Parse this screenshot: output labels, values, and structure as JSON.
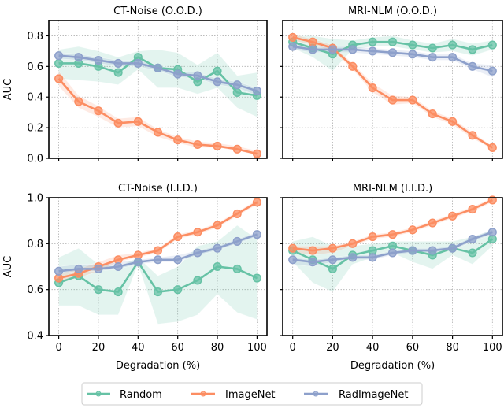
{
  "legend": {
    "placement": "bottom-center",
    "entries": [
      {
        "name": "Random",
        "color": "#66c2a5"
      },
      {
        "name": "ImageNet",
        "color": "#fc8d62"
      },
      {
        "name": "RadImageNet",
        "color": "#8da0cb"
      }
    ]
  },
  "chart_data": [
    {
      "type": "line",
      "title": "CT-Noise (O.O.D.)",
      "xlabel": "",
      "ylabel": "AUC",
      "x": [
        0,
        10,
        20,
        30,
        40,
        50,
        60,
        70,
        80,
        90,
        100
      ],
      "xlim": [
        -5,
        105
      ],
      "ylim": [
        0.0,
        0.9
      ],
      "xticks": [
        0,
        20,
        40,
        60,
        80,
        100
      ],
      "xtick_labels_shown": false,
      "yticks": [
        0.0,
        0.2,
        0.4,
        0.6,
        0.8
      ],
      "ytick_labels": [
        "0.0",
        "0.2",
        "0.4",
        "0.6",
        "0.8"
      ],
      "grid": true,
      "series": [
        {
          "name": "Random",
          "values": [
            0.62,
            0.62,
            0.6,
            0.56,
            0.66,
            0.59,
            0.58,
            0.5,
            0.57,
            0.43,
            0.41
          ],
          "lower": [
            0.52,
            0.51,
            0.5,
            0.48,
            0.58,
            0.46,
            0.46,
            0.42,
            0.46,
            0.33,
            0.27
          ],
          "upper": [
            0.71,
            0.73,
            0.7,
            0.66,
            0.7,
            0.71,
            0.69,
            0.61,
            0.69,
            0.54,
            0.56
          ]
        },
        {
          "name": "ImageNet",
          "values": [
            0.52,
            0.37,
            0.31,
            0.23,
            0.24,
            0.17,
            0.12,
            0.09,
            0.08,
            0.06,
            0.03
          ],
          "lower": [
            0.47,
            0.33,
            0.27,
            0.2,
            0.21,
            0.14,
            0.1,
            0.07,
            0.07,
            0.05,
            0.02
          ],
          "upper": [
            0.57,
            0.41,
            0.34,
            0.26,
            0.27,
            0.19,
            0.14,
            0.11,
            0.1,
            0.08,
            0.05
          ]
        },
        {
          "name": "RadImageNet",
          "values": [
            0.67,
            0.66,
            0.64,
            0.62,
            0.62,
            0.59,
            0.55,
            0.54,
            0.5,
            0.48,
            0.44
          ],
          "lower": [
            0.65,
            0.64,
            0.62,
            0.6,
            0.6,
            0.57,
            0.53,
            0.52,
            0.48,
            0.46,
            0.41
          ],
          "upper": [
            0.69,
            0.68,
            0.66,
            0.64,
            0.64,
            0.61,
            0.57,
            0.56,
            0.52,
            0.5,
            0.46
          ]
        }
      ]
    },
    {
      "type": "line",
      "title": "MRI-NLM (O.O.D.)",
      "xlabel": "",
      "ylabel": "",
      "x": [
        0,
        10,
        20,
        30,
        40,
        50,
        60,
        70,
        80,
        90,
        100
      ],
      "xlim": [
        -5,
        105
      ],
      "ylim": [
        0.0,
        0.9
      ],
      "xticks": [
        0,
        20,
        40,
        60,
        80,
        100
      ],
      "xtick_labels_shown": false,
      "yticks": [
        0.0,
        0.2,
        0.4,
        0.6,
        0.8
      ],
      "ytick_labels_shown": false,
      "grid": true,
      "series": [
        {
          "name": "Random",
          "values": [
            0.76,
            0.72,
            0.68,
            0.74,
            0.76,
            0.76,
            0.74,
            0.72,
            0.74,
            0.71,
            0.74
          ],
          "lower": [
            0.72,
            0.66,
            0.57,
            0.71,
            0.73,
            0.73,
            0.71,
            0.69,
            0.7,
            0.67,
            0.71
          ],
          "upper": [
            0.8,
            0.8,
            0.78,
            0.77,
            0.79,
            0.8,
            0.77,
            0.75,
            0.78,
            0.75,
            0.77
          ]
        },
        {
          "name": "ImageNet",
          "values": [
            0.79,
            0.76,
            0.72,
            0.6,
            0.46,
            0.38,
            0.38,
            0.29,
            0.24,
            0.15,
            0.07
          ],
          "lower": [
            0.77,
            0.74,
            0.7,
            0.58,
            0.43,
            0.35,
            0.36,
            0.27,
            0.22,
            0.13,
            0.06
          ],
          "upper": [
            0.81,
            0.78,
            0.74,
            0.62,
            0.49,
            0.41,
            0.4,
            0.31,
            0.26,
            0.17,
            0.08
          ]
        },
        {
          "name": "RadImageNet",
          "values": [
            0.73,
            0.71,
            0.71,
            0.71,
            0.7,
            0.69,
            0.68,
            0.66,
            0.66,
            0.6,
            0.57
          ],
          "lower": [
            0.71,
            0.69,
            0.69,
            0.69,
            0.68,
            0.67,
            0.66,
            0.64,
            0.64,
            0.58,
            0.53
          ],
          "upper": [
            0.75,
            0.73,
            0.73,
            0.73,
            0.72,
            0.71,
            0.7,
            0.68,
            0.68,
            0.62,
            0.61
          ]
        }
      ]
    },
    {
      "type": "line",
      "title": "CT-Noise (I.I.D.)",
      "xlabel": "Degradation (%)",
      "ylabel": "AUC",
      "x": [
        0,
        10,
        20,
        30,
        40,
        50,
        60,
        70,
        80,
        90,
        100
      ],
      "xlim": [
        -5,
        105
      ],
      "ylim": [
        0.4,
        1.0
      ],
      "xticks": [
        0,
        20,
        40,
        60,
        80,
        100
      ],
      "xtick_labels": [
        "0",
        "20",
        "40",
        "60",
        "80",
        "100"
      ],
      "yticks": [
        0.4,
        0.6,
        0.8,
        1.0
      ],
      "ytick_labels": [
        "0.4",
        "0.6",
        "0.8",
        "1.0"
      ],
      "grid": true,
      "series": [
        {
          "name": "Random",
          "values": [
            0.63,
            0.66,
            0.6,
            0.59,
            0.72,
            0.59,
            0.6,
            0.64,
            0.7,
            0.69,
            0.65
          ],
          "lower": [
            0.53,
            0.53,
            0.49,
            0.49,
            0.71,
            0.45,
            0.46,
            0.49,
            0.58,
            0.5,
            0.47
          ],
          "upper": [
            0.74,
            0.78,
            0.71,
            0.7,
            0.74,
            0.66,
            0.7,
            0.79,
            0.81,
            0.88,
            0.82
          ]
        },
        {
          "name": "ImageNet",
          "values": [
            0.65,
            0.67,
            0.7,
            0.73,
            0.75,
            0.77,
            0.83,
            0.85,
            0.88,
            0.93,
            0.98
          ],
          "lower": [
            0.63,
            0.65,
            0.68,
            0.72,
            0.74,
            0.76,
            0.82,
            0.84,
            0.87,
            0.92,
            0.97
          ],
          "upper": [
            0.67,
            0.69,
            0.72,
            0.75,
            0.76,
            0.78,
            0.84,
            0.86,
            0.89,
            0.94,
            0.99
          ]
        },
        {
          "name": "RadImageNet",
          "values": [
            0.68,
            0.69,
            0.69,
            0.7,
            0.72,
            0.73,
            0.73,
            0.76,
            0.78,
            0.81,
            0.84
          ],
          "lower": [
            0.67,
            0.68,
            0.68,
            0.69,
            0.71,
            0.72,
            0.72,
            0.75,
            0.77,
            0.8,
            0.83
          ],
          "upper": [
            0.7,
            0.71,
            0.71,
            0.72,
            0.73,
            0.74,
            0.75,
            0.77,
            0.79,
            0.82,
            0.85
          ]
        }
      ]
    },
    {
      "type": "line",
      "title": "MRI-NLM (I.I.D.)",
      "xlabel": "Degradation (%)",
      "ylabel": "",
      "x": [
        0,
        10,
        20,
        30,
        40,
        50,
        60,
        70,
        80,
        90,
        100
      ],
      "xlim": [
        -5,
        105
      ],
      "ylim": [
        0.4,
        1.0
      ],
      "xticks": [
        0,
        20,
        40,
        60,
        80,
        100
      ],
      "xtick_labels": [
        "0",
        "20",
        "40",
        "60",
        "80",
        "100"
      ],
      "yticks": [
        0.4,
        0.6,
        0.8,
        1.0
      ],
      "ytick_labels_shown": false,
      "grid": true,
      "series": [
        {
          "name": "Random",
          "values": [
            0.77,
            0.73,
            0.69,
            0.75,
            0.77,
            0.79,
            0.77,
            0.75,
            0.78,
            0.76,
            0.82
          ],
          "lower": [
            0.72,
            0.63,
            0.59,
            0.71,
            0.74,
            0.76,
            0.72,
            0.69,
            0.75,
            0.71,
            0.79
          ],
          "upper": [
            0.81,
            0.83,
            0.79,
            0.79,
            0.8,
            0.81,
            0.81,
            0.81,
            0.81,
            0.83,
            0.86
          ]
        },
        {
          "name": "ImageNet",
          "values": [
            0.78,
            0.77,
            0.78,
            0.8,
            0.83,
            0.84,
            0.86,
            0.89,
            0.92,
            0.95,
            0.99
          ],
          "lower": [
            0.76,
            0.75,
            0.76,
            0.79,
            0.82,
            0.83,
            0.85,
            0.88,
            0.91,
            0.94,
            0.98
          ],
          "upper": [
            0.79,
            0.79,
            0.79,
            0.81,
            0.84,
            0.85,
            0.87,
            0.9,
            0.93,
            0.96,
            1.0
          ]
        },
        {
          "name": "RadImageNet",
          "values": [
            0.73,
            0.72,
            0.73,
            0.74,
            0.74,
            0.76,
            0.77,
            0.77,
            0.78,
            0.82,
            0.85
          ],
          "lower": [
            0.71,
            0.7,
            0.72,
            0.73,
            0.73,
            0.75,
            0.76,
            0.76,
            0.77,
            0.81,
            0.84
          ],
          "upper": [
            0.74,
            0.73,
            0.74,
            0.75,
            0.75,
            0.77,
            0.78,
            0.78,
            0.79,
            0.83,
            0.86
          ]
        }
      ]
    }
  ]
}
